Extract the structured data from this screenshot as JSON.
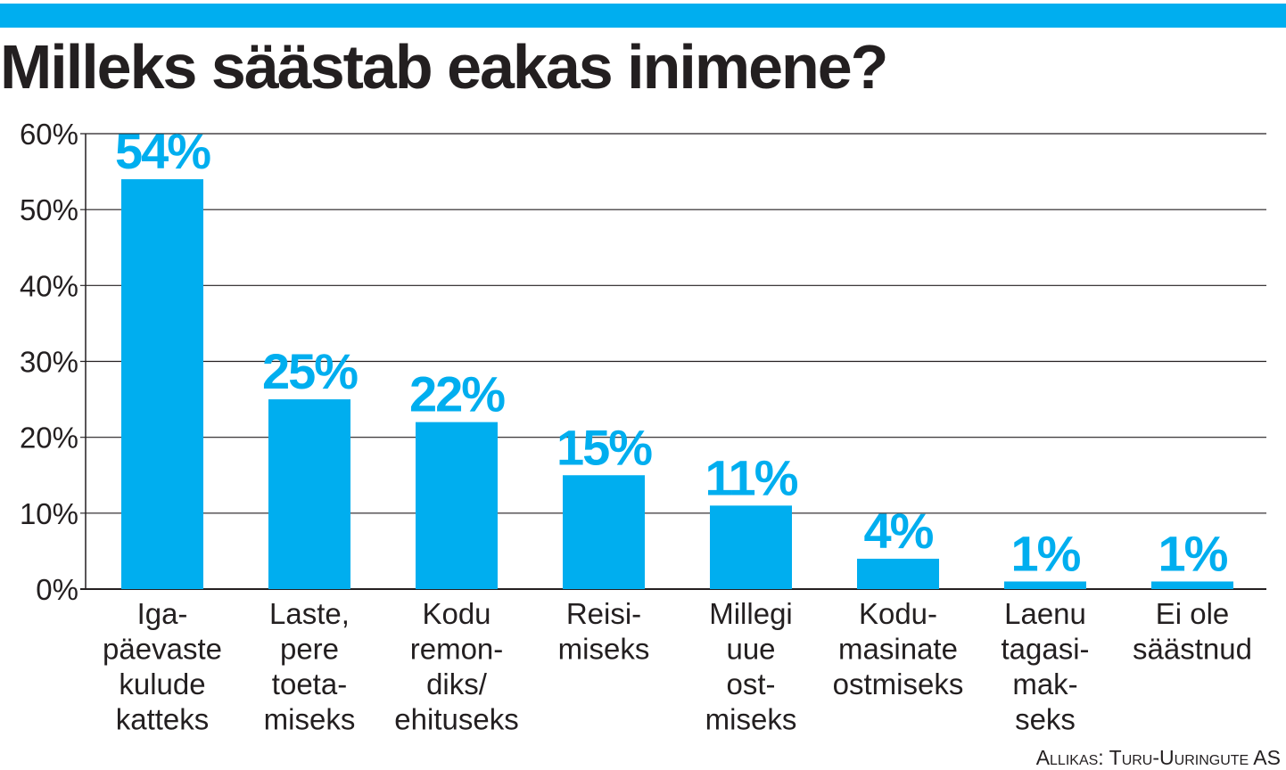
{
  "title": "Milleks säästab eakas inimene?",
  "source": "Allikas: Turu-Uuringute AS",
  "colors": {
    "accent": "#00aeef",
    "text": "#231f20",
    "grid": "#231f20"
  },
  "chart_data": {
    "type": "bar",
    "title": "Milleks säästab eakas inimene?",
    "xlabel": "",
    "ylabel": "",
    "ylim": [
      0,
      60
    ],
    "yticks": [
      "0%",
      "10%",
      "20%",
      "30%",
      "40%",
      "50%",
      "60%"
    ],
    "grid": true,
    "legend": "none",
    "categories": [
      [
        "Iga-",
        "päevaste",
        "kulude",
        "katteks"
      ],
      [
        "Laste,",
        "pere",
        "toeta-",
        "miseks"
      ],
      [
        "Kodu",
        "remon-",
        "diks/",
        "ehituseks"
      ],
      [
        "Reisi-",
        "miseks"
      ],
      [
        "Millegi",
        "uue",
        "ost-",
        "miseks"
      ],
      [
        "Kodu-",
        "masinate",
        "ostmiseks"
      ],
      [
        "Laenu",
        "tagasi-",
        "mak-",
        "seks"
      ],
      [
        "Ei ole",
        "säästnud"
      ]
    ],
    "values": [
      54,
      25,
      22,
      15,
      11,
      4,
      1,
      1
    ],
    "value_labels": [
      "54%",
      "25%",
      "22%",
      "15%",
      "11%",
      "4%",
      "1%",
      "1%"
    ]
  }
}
